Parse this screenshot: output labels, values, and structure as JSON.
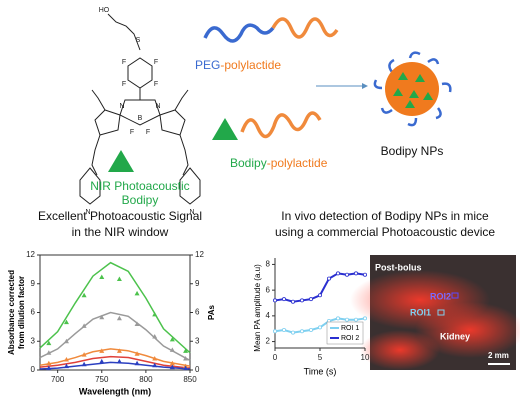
{
  "top": {
    "atoms": [
      "HO",
      "S",
      "F",
      "F",
      "F",
      "F",
      "N",
      "N",
      "B",
      "F",
      "F",
      "N",
      "N"
    ],
    "bodipy_label": [
      "NIR Photoacoustic",
      "Bodipy"
    ],
    "peg": {
      "a": "PEG",
      "b": "-polylactide"
    },
    "bpl": {
      "a": "Bodipy",
      "b": "-polylactide"
    },
    "np_label": "Bodipy NPs"
  },
  "left_title": [
    "Excellent Photoacoustic Signal",
    "in the NIR window"
  ],
  "left_chart": {
    "type": "line",
    "xlabel": "Wavelength (nm)",
    "ylabel": [
      "Absorbance corrected",
      "from dilution factor"
    ],
    "y2label": "PAs",
    "xlim": [
      680,
      850
    ],
    "xticks": [
      700,
      750,
      800,
      850
    ],
    "ylim": [
      0,
      12
    ],
    "yticks": [
      0,
      3,
      6,
      9,
      12
    ],
    "y2lim": [
      0,
      12
    ],
    "y2ticks": [
      0,
      3,
      6,
      9,
      12
    ],
    "x": [
      680,
      700,
      720,
      740,
      760,
      780,
      800,
      820,
      850
    ],
    "series": [
      {
        "color": "#4cc24c",
        "values": [
          2.3,
          4,
          7,
          9.8,
          11.2,
          10.3,
          7.5,
          4.3,
          1.8
        ]
      },
      {
        "color": "#9a9a9a",
        "values": [
          1.3,
          2.2,
          3.8,
          5.3,
          6,
          5.6,
          4.2,
          2.5,
          1
        ]
      },
      {
        "color": "#f08a3c",
        "values": [
          0.5,
          0.8,
          1.3,
          1.9,
          2.2,
          2,
          1.5,
          0.9,
          0.4
        ]
      },
      {
        "color": "#e0403a",
        "values": [
          0.3,
          0.5,
          0.8,
          1.2,
          1.4,
          1.3,
          0.9,
          0.5,
          0.2
        ]
      },
      {
        "color": "#2b3fc0",
        "values": [
          0.1,
          0.2,
          0.4,
          0.6,
          0.8,
          0.7,
          0.5,
          0.3,
          0.1
        ]
      }
    ],
    "points_x": [
      690,
      710,
      730,
      750,
      770,
      790,
      810,
      830,
      845
    ],
    "points": [
      {
        "color": "#4cc24c",
        "values": [
          2.8,
          5,
          7.8,
          9.7,
          9.5,
          8,
          5.8,
          3.2,
          2
        ]
      },
      {
        "color": "#9a9a9a",
        "values": [
          1.8,
          3,
          4.6,
          5.5,
          5.4,
          4.8,
          3.5,
          2.1,
          1.2
        ]
      },
      {
        "color": "#f08a3c",
        "values": [
          0.7,
          1.1,
          1.6,
          2,
          2,
          1.7,
          1.2,
          0.7,
          0.4
        ]
      },
      {
        "color": "#2b3fc0",
        "values": [
          0.2,
          0.4,
          0.6,
          0.9,
          0.9,
          0.7,
          0.5,
          0.3,
          0.2
        ]
      }
    ]
  },
  "right_title": [
    "In vivo detection of Bodipy NPs in mice",
    "using  a commercial Photoacoustic device"
  ],
  "right_chart": {
    "type": "line",
    "xlabel": "Time (s)",
    "ylabel": "Mean PA amplitude (a.u)",
    "xlim": [
      0,
      10
    ],
    "xticks": [
      0,
      5,
      10
    ],
    "ylim": [
      1.5,
      8.5
    ],
    "yticks": [
      2,
      4,
      6,
      8
    ],
    "legend": "lower right",
    "x": [
      0,
      1,
      2,
      3,
      4,
      5,
      6,
      7,
      8,
      9,
      10
    ],
    "series": [
      {
        "name": "ROI 1",
        "color": "#7fd0f0",
        "values": [
          2.8,
          2.9,
          2.7,
          2.8,
          2.9,
          3.1,
          3.6,
          3.8,
          3.7,
          3.7,
          3.8
        ]
      },
      {
        "name": "ROI 2",
        "color": "#2a2fd0",
        "values": [
          5.2,
          5.3,
          5.1,
          5.2,
          5.3,
          5.6,
          6.9,
          7.3,
          7.2,
          7.3,
          7.2
        ]
      }
    ]
  },
  "image": {
    "post": "Post-bolus",
    "roi2": "ROI2",
    "roi1": "ROI1",
    "kidney": "Kidney",
    "scale": "2 mm"
  }
}
